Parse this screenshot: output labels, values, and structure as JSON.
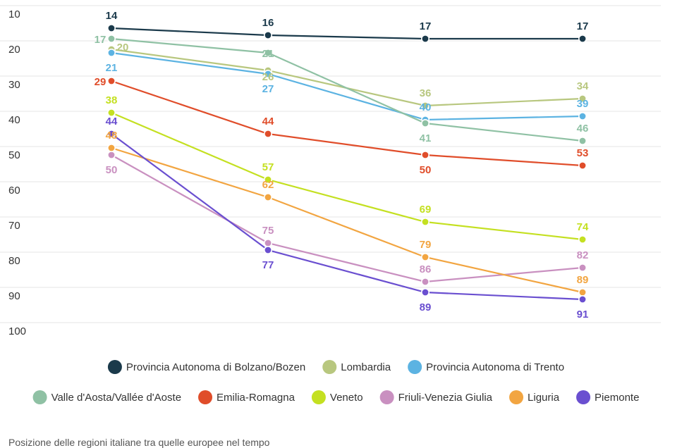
{
  "chart_data": {
    "type": "line",
    "title": "",
    "xlabel": "",
    "ylabel": "",
    "y_reversed": true,
    "ylim": [
      10,
      100
    ],
    "yticks": [
      10,
      20,
      30,
      40,
      50,
      60,
      70,
      80,
      90,
      100
    ],
    "x_points": 4,
    "grid": true,
    "legend_position": "bottom",
    "series": [
      {
        "name": "Provincia Autonoma di Bolzano/Bozen",
        "color": "#1b3a4b",
        "values": [
          14,
          16,
          17,
          17
        ]
      },
      {
        "name": "Lombardia",
        "color": "#b8c77f",
        "values": [
          20,
          26,
          36,
          34
        ]
      },
      {
        "name": "Provincia Autonoma di Trento",
        "color": "#5cb3e2",
        "values": [
          21,
          27,
          40,
          39
        ]
      },
      {
        "name": "Valle d'Aosta/Vallée d'Aoste",
        "color": "#8fc1a4",
        "values": [
          17,
          21,
          41,
          46
        ]
      },
      {
        "name": "Emilia-Romagna",
        "color": "#e04d2a",
        "values": [
          29,
          44,
          50,
          53
        ]
      },
      {
        "name": "Veneto",
        "color": "#c4e021",
        "values": [
          38,
          57,
          69,
          74
        ]
      },
      {
        "name": "Friuli-Venezia Giulia",
        "color": "#c990c0",
        "values": [
          50,
          75,
          86,
          82
        ]
      },
      {
        "name": "Liguria",
        "color": "#f2a541",
        "values": [
          48,
          62,
          79,
          89
        ]
      },
      {
        "name": "Piemonte",
        "color": "#6a4fd0",
        "values": [
          44,
          77,
          89,
          91
        ]
      }
    ]
  },
  "caption": "Posizione delle regioni italiane tra quelle europee nel tempo"
}
